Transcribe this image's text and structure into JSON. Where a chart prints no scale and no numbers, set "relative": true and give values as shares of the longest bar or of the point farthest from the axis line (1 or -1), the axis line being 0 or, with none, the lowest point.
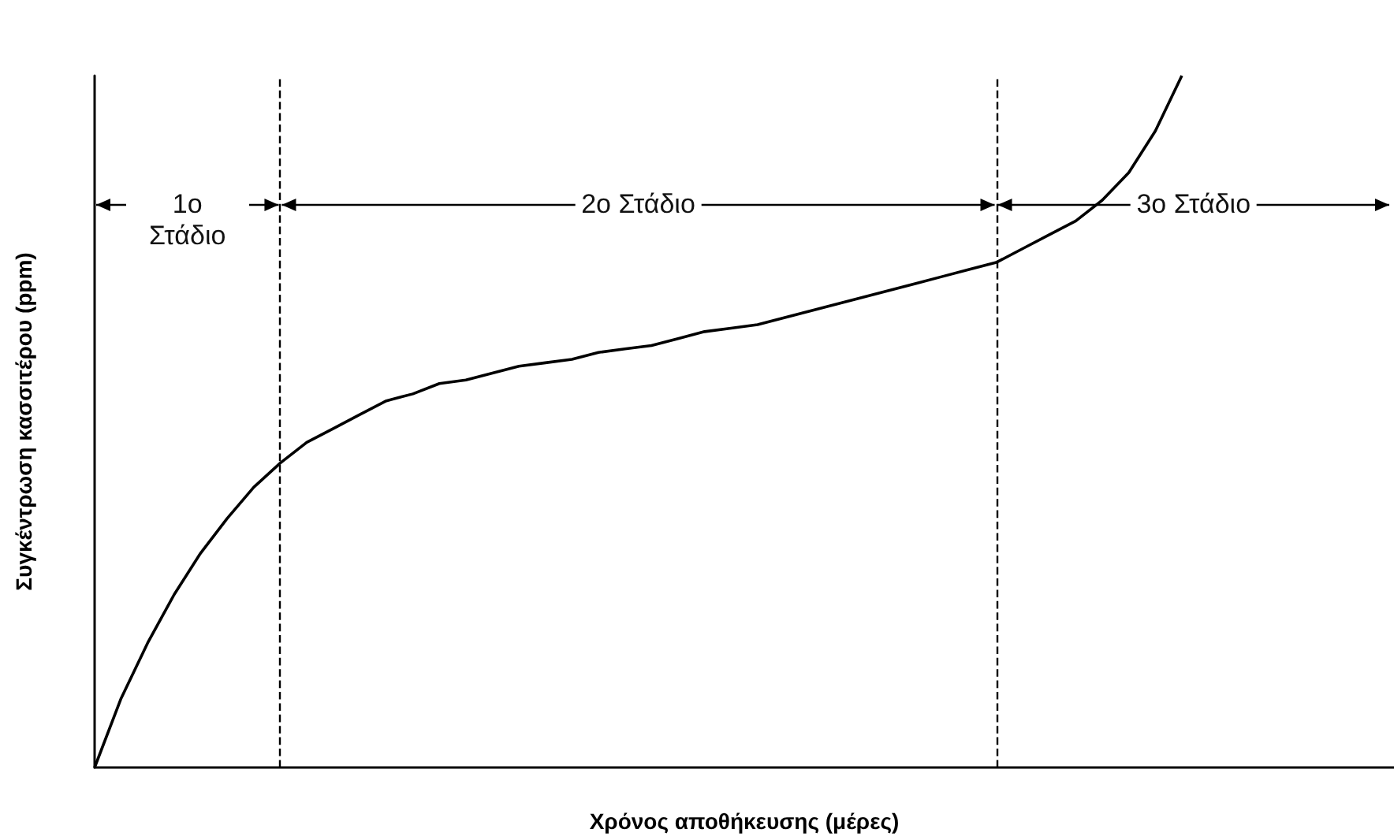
{
  "chart_data": {
    "type": "line",
    "relative": true,
    "xlabel": "Χρόνος αποθήκευσης (μέρες)",
    "ylabel": "Συγκέντρωση κασσιτέρου (ppm)",
    "categories": [
      null,
      null,
      null,
      null,
      null,
      null,
      null,
      null,
      null,
      null,
      null,
      null,
      null,
      null,
      null,
      null,
      null,
      null,
      null,
      null,
      null,
      null,
      null,
      null,
      null,
      null,
      null,
      null,
      null,
      null,
      null,
      null,
      null,
      null,
      null,
      null,
      null,
      null,
      null,
      null,
      null,
      null,
      null,
      null,
      null,
      null,
      null,
      null,
      null,
      null
    ],
    "series": [
      {
        "color": "#000000",
        "values": [
          0,
          0.1,
          0.18,
          0.25,
          0.31,
          0.36,
          0.405,
          0.44,
          0.47,
          0.49,
          0.51,
          0.53,
          0.54,
          0.555,
          0.56,
          0.57,
          0.58,
          0.585,
          0.59,
          0.6,
          0.605,
          0.61,
          0.62,
          0.63,
          0.635,
          0.64,
          0.65,
          0.66,
          0.67,
          0.68,
          0.69,
          0.7,
          0.71,
          0.72,
          0.73,
          0.75,
          0.77,
          0.79,
          0.82,
          0.86,
          0.92,
          1,
          null,
          null,
          null,
          null,
          null,
          null,
          null,
          null
        ]
      }
    ],
    "annotations": [
      "1ο Στάδιο",
      "2ο Στάδιο",
      "3ο Στάδιο"
    ],
    "marker": "none",
    "line_style": "solid",
    "grid": false
  }
}
